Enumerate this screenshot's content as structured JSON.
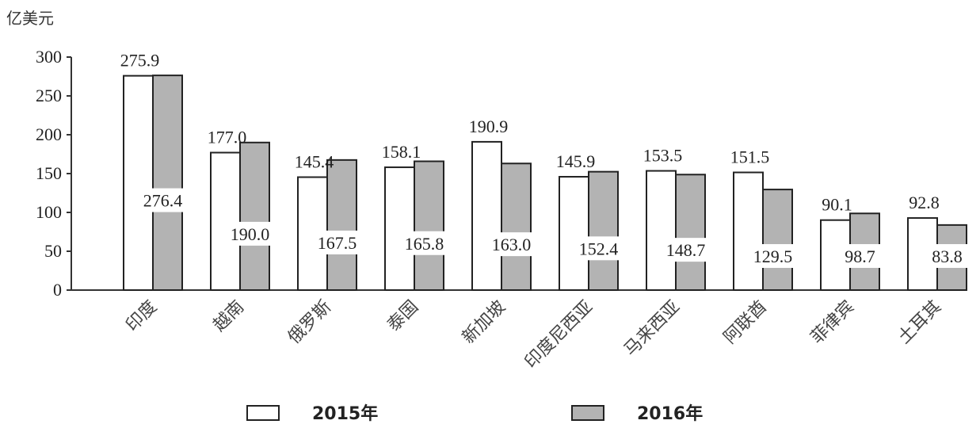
{
  "chart_data": {
    "type": "bar",
    "ylabel": "亿美元",
    "ylim": [
      0,
      300
    ],
    "yticks": [
      0,
      50,
      100,
      150,
      200,
      250,
      300
    ],
    "categories": [
      "印度",
      "越南",
      "俄罗斯",
      "泰国",
      "新加坡",
      "印度尼西亚",
      "马来西亚",
      "阿联酋",
      "菲律宾",
      "土耳其"
    ],
    "series": [
      {
        "name": "2015年",
        "color": "#ffffff",
        "values": [
          275.9,
          177.0,
          145.4,
          158.1,
          190.9,
          145.9,
          153.5,
          151.5,
          90.1,
          92.8
        ],
        "labels": [
          "275.9",
          "177.0",
          "145.4",
          "158.1",
          "190.9",
          "145.9",
          "153.5",
          "151.5",
          "90.1",
          "92.8"
        ]
      },
      {
        "name": "2016年",
        "color": "#b3b3b3",
        "values": [
          276.4,
          190.0,
          167.5,
          165.8,
          163.0,
          152.4,
          148.7,
          129.5,
          98.7,
          83.8
        ],
        "labels": [
          "276.4",
          "190.0",
          "167.5",
          "165.8",
          "163.0",
          "152.4",
          "148.7",
          "129.5",
          "98.7",
          "83.8"
        ]
      }
    ],
    "legend": "bottom",
    "grid": false
  }
}
